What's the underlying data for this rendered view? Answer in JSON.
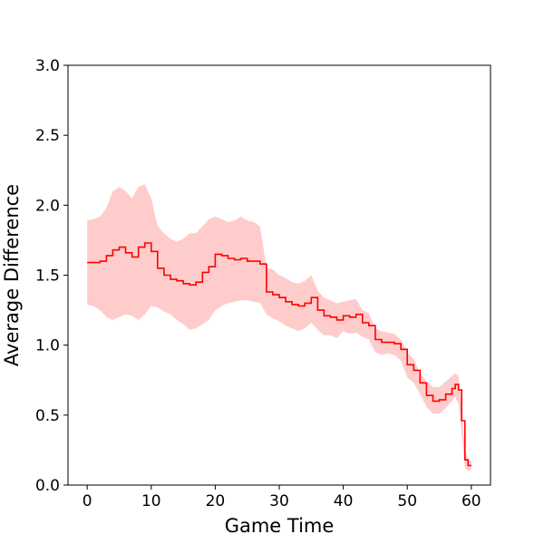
{
  "chart_data": {
    "type": "line",
    "title": "",
    "xlabel": "Game Time",
    "ylabel": "Average Difference",
    "xlim": [
      -3,
      63
    ],
    "ylim": [
      0,
      3.0
    ],
    "x_ticks": [
      0,
      10,
      20,
      30,
      40,
      50,
      60
    ],
    "x_tick_labels": [
      "0",
      "10",
      "20",
      "30",
      "40",
      "50",
      "60"
    ],
    "y_ticks": [
      0,
      0.5,
      1.0,
      1.5,
      2.0,
      2.5,
      3.0
    ],
    "y_tick_labels": [
      "0.0",
      "0.5",
      "1.0",
      "1.5",
      "2.0",
      "2.5",
      "3.0"
    ],
    "grid": false,
    "legend": "none",
    "colors": {
      "line": "#ff0000",
      "band": "#ffcccc",
      "axes": "#000000"
    },
    "series": [
      {
        "x": [
          0,
          1,
          2,
          3,
          4,
          5,
          6,
          7,
          8,
          9,
          10,
          11,
          12,
          13,
          14,
          15,
          16,
          17,
          18,
          19,
          20,
          21,
          22,
          23,
          24,
          25,
          26,
          27,
          28,
          29,
          30,
          31,
          32,
          33,
          34,
          35,
          36,
          37,
          38,
          39,
          40,
          41,
          42,
          43,
          44,
          45,
          46,
          47,
          48,
          49,
          50,
          51,
          52,
          53,
          54,
          55,
          56,
          57,
          57.5,
          58,
          58.5,
          59,
          59.5,
          60
        ],
        "y": [
          1.59,
          1.59,
          1.6,
          1.64,
          1.68,
          1.7,
          1.66,
          1.63,
          1.7,
          1.73,
          1.67,
          1.55,
          1.5,
          1.47,
          1.46,
          1.44,
          1.43,
          1.45,
          1.52,
          1.56,
          1.65,
          1.64,
          1.62,
          1.61,
          1.62,
          1.6,
          1.6,
          1.58,
          1.38,
          1.36,
          1.34,
          1.31,
          1.29,
          1.28,
          1.3,
          1.34,
          1.25,
          1.21,
          1.2,
          1.18,
          1.21,
          1.2,
          1.22,
          1.16,
          1.14,
          1.04,
          1.02,
          1.02,
          1.01,
          0.97,
          0.86,
          0.82,
          0.73,
          0.64,
          0.6,
          0.61,
          0.65,
          0.69,
          0.72,
          0.68,
          0.46,
          0.18,
          0.14,
          0.14
        ],
        "upper": [
          1.89,
          1.9,
          1.92,
          1.98,
          2.1,
          2.13,
          2.1,
          2.05,
          2.13,
          2.15,
          2.05,
          1.85,
          1.8,
          1.76,
          1.74,
          1.76,
          1.8,
          1.8,
          1.85,
          1.9,
          1.92,
          1.9,
          1.88,
          1.89,
          1.92,
          1.89,
          1.88,
          1.85,
          1.55,
          1.54,
          1.5,
          1.48,
          1.45,
          1.44,
          1.46,
          1.5,
          1.39,
          1.34,
          1.32,
          1.3,
          1.31,
          1.32,
          1.33,
          1.25,
          1.23,
          1.12,
          1.1,
          1.09,
          1.08,
          1.04,
          0.95,
          0.9,
          0.8,
          0.74,
          0.7,
          0.7,
          0.74,
          0.78,
          0.8,
          0.78,
          0.55,
          0.25,
          0.18,
          0.17
        ],
        "lower": [
          1.29,
          1.28,
          1.25,
          1.2,
          1.18,
          1.2,
          1.22,
          1.21,
          1.18,
          1.22,
          1.28,
          1.27,
          1.24,
          1.22,
          1.18,
          1.15,
          1.11,
          1.12,
          1.15,
          1.18,
          1.25,
          1.28,
          1.3,
          1.31,
          1.32,
          1.32,
          1.31,
          1.3,
          1.22,
          1.19,
          1.17,
          1.14,
          1.12,
          1.1,
          1.12,
          1.16,
          1.11,
          1.07,
          1.07,
          1.05,
          1.1,
          1.08,
          1.09,
          1.06,
          1.04,
          0.95,
          0.93,
          0.94,
          0.93,
          0.89,
          0.77,
          0.73,
          0.65,
          0.56,
          0.51,
          0.51,
          0.55,
          0.6,
          0.63,
          0.58,
          0.38,
          0.12,
          0.1,
          0.11
        ]
      }
    ]
  }
}
